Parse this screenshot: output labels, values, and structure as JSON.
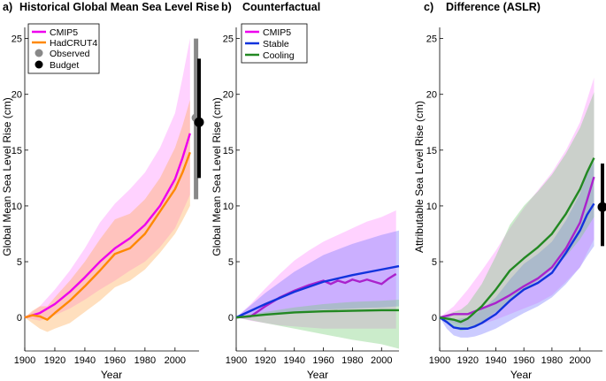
{
  "chart_data": [
    {
      "type": "line",
      "panel_letter": "a)",
      "title": "Historical Global Mean Sea Level Rise",
      "xlabel": "Year",
      "ylabel": "Global Mean Sea Level Rise (cm)",
      "xlim": [
        1900,
        2016
      ],
      "ylim": [
        -3,
        26
      ],
      "xticks": [
        1900,
        1920,
        1940,
        1960,
        1980,
        2000
      ],
      "yticks": [
        0,
        5,
        10,
        15,
        20,
        25
      ],
      "legend_position": "top-left",
      "series": [
        {
          "name": "CMIP5",
          "color": "#ee00ee",
          "band_color": "#ff88ff",
          "x": [
            1900,
            1910,
            1920,
            1930,
            1940,
            1950,
            1960,
            1970,
            1980,
            1990,
            2000,
            2005,
            2010
          ],
          "values": [
            0,
            0.4,
            1.2,
            2.3,
            3.6,
            5.0,
            6.2,
            7.1,
            8.3,
            10.0,
            12.4,
            14.3,
            16.5
          ],
          "lower": [
            0,
            -0.3,
            0.2,
            0.8,
            1.6,
            2.5,
            3.3,
            4.2,
            5.0,
            6.3,
            8.0,
            9.5,
            11.0
          ],
          "upper": [
            0,
            1.0,
            2.5,
            4.2,
            6.2,
            8.5,
            10.2,
            11.5,
            13.0,
            15.2,
            18.3,
            21.5,
            25.0
          ]
        },
        {
          "name": "HadCRUT4",
          "color": "#ff8800",
          "band_color": "#ffaa55",
          "x": [
            1900,
            1905,
            1910,
            1915,
            1920,
            1930,
            1940,
            1950,
            1960,
            1970,
            1980,
            1990,
            2000,
            2005,
            2010
          ],
          "values": [
            0,
            0.2,
            0.1,
            -0.2,
            0.4,
            1.5,
            2.8,
            4.2,
            5.7,
            6.2,
            7.5,
            9.5,
            11.5,
            13.0,
            14.8
          ],
          "lower": [
            0,
            -0.5,
            -1.0,
            -1.3,
            -1.0,
            -0.5,
            0.5,
            1.5,
            2.7,
            3.3,
            4.3,
            5.8,
            7.5,
            8.7,
            10.0
          ],
          "upper": [
            0,
            0.6,
            1.0,
            1.0,
            1.8,
            3.3,
            5.0,
            7.0,
            8.8,
            9.3,
            10.6,
            12.5,
            15.2,
            17.2,
            19.5
          ]
        }
      ],
      "observed": {
        "name": "Observed",
        "color": "#888888",
        "year": 2014,
        "value": 17.9,
        "low": 10.6,
        "high": 25.0
      },
      "budget": {
        "name": "Budget",
        "color": "#000000",
        "year": 2016,
        "value": 17.5,
        "low": 12.5,
        "high": 23.2
      }
    },
    {
      "type": "line",
      "panel_letter": "b)",
      "title": "Counterfactual",
      "xlabel": "Year",
      "ylabel": "Global Mean Sea Level Rise (cm)",
      "xlim": [
        1900,
        2012
      ],
      "ylim": [
        -3,
        26
      ],
      "xticks": [
        1900,
        1920,
        1940,
        1960,
        1980,
        2000
      ],
      "yticks": [
        0,
        5,
        10,
        15,
        20,
        25
      ],
      "legend_position": "top-left",
      "series": [
        {
          "name": "CMIP5",
          "color": "#aa22cc",
          "band_color": "#ff88ff",
          "x": [
            1900,
            1910,
            1920,
            1930,
            1940,
            1950,
            1960,
            1965,
            1970,
            1975,
            1980,
            1985,
            1990,
            1995,
            2000,
            2005,
            2010
          ],
          "values": [
            0,
            0.1,
            1.0,
            1.8,
            2.4,
            2.9,
            3.3,
            3.0,
            3.3,
            3.1,
            3.4,
            3.2,
            3.4,
            3.2,
            3.0,
            3.5,
            3.9
          ],
          "lower": [
            0,
            -0.3,
            -0.5,
            -0.7,
            -0.8,
            -0.9,
            -1.0,
            -1.0,
            -1.0,
            -1.0,
            -1.0,
            -1.0,
            -1.0,
            -1.0,
            -1.0,
            -1.0,
            -1.0
          ],
          "upper": [
            0,
            1.2,
            2.6,
            3.9,
            5.1,
            6.0,
            6.8,
            7.1,
            7.4,
            7.7,
            8.0,
            8.3,
            8.6,
            8.8,
            9.0,
            9.3,
            9.6
          ]
        },
        {
          "name": "Stable",
          "color": "#1133dd",
          "band_color": "#7777ff",
          "x": [
            1900,
            1920,
            1940,
            1960,
            1980,
            2000,
            2012
          ],
          "values": [
            0,
            1.2,
            2.3,
            3.2,
            3.8,
            4.3,
            4.6
          ],
          "lower": [
            0,
            0.2,
            0.5,
            0.7,
            0.8,
            0.9,
            1.0
          ],
          "upper": [
            0,
            2.2,
            4.1,
            5.6,
            6.6,
            7.4,
            7.8
          ]
        },
        {
          "name": "Cooling",
          "color": "#228822",
          "band_color": "#77cc77",
          "x": [
            1900,
            1920,
            1940,
            1960,
            1980,
            2000,
            2012
          ],
          "values": [
            0,
            0.25,
            0.45,
            0.55,
            0.6,
            0.65,
            0.65
          ],
          "lower": [
            0,
            -0.5,
            -1.0,
            -1.5,
            -2.0,
            -2.4,
            -2.8
          ],
          "upper": [
            0,
            0.5,
            0.9,
            1.2,
            1.4,
            1.5,
            1.6
          ]
        }
      ]
    },
    {
      "type": "line",
      "panel_letter": "c)",
      "title": "Difference (ASLR)",
      "xlabel": "Year",
      "ylabel": "Attributable Sea Level Rise (cm)",
      "xlim": [
        1900,
        2016
      ],
      "ylim": [
        -3,
        26
      ],
      "xticks": [
        1900,
        1920,
        1940,
        1960,
        1980,
        2000
      ],
      "yticks": [
        0,
        5,
        10,
        15,
        20,
        25
      ],
      "series": [
        {
          "name": "CMIP5",
          "color": "#aa22cc",
          "band_color": "#ff88ff",
          "x": [
            1900,
            1910,
            1920,
            1930,
            1940,
            1950,
            1960,
            1970,
            1980,
            1990,
            2000,
            2005,
            2010
          ],
          "values": [
            0,
            0.3,
            0.3,
            0.8,
            1.3,
            2.0,
            2.8,
            3.5,
            4.5,
            6.2,
            8.5,
            10.5,
            12.6
          ],
          "lower": [
            0,
            -0.5,
            -0.8,
            -0.6,
            -0.2,
            0.3,
            0.8,
            1.3,
            2.0,
            3.2,
            4.5,
            5.8,
            7.0
          ],
          "upper": [
            0,
            1.0,
            2.5,
            4.2,
            6.0,
            8.0,
            9.8,
            11.4,
            13.0,
            15.0,
            17.5,
            19.5,
            21.5
          ]
        },
        {
          "name": "Stable",
          "color": "#1133dd",
          "band_color": "#7777ff",
          "x": [
            1900,
            1905,
            1910,
            1915,
            1920,
            1925,
            1930,
            1940,
            1950,
            1960,
            1970,
            1980,
            1990,
            2000,
            2005,
            2010
          ],
          "values": [
            0,
            -0.4,
            -0.9,
            -1.0,
            -1.0,
            -0.8,
            -0.5,
            0.3,
            1.5,
            2.5,
            3.1,
            4.0,
            5.8,
            7.8,
            9.2,
            10.2
          ],
          "lower": [
            0,
            -1.0,
            -1.6,
            -1.8,
            -1.8,
            -1.7,
            -1.5,
            -1.0,
            -0.3,
            0.4,
            1.0,
            1.8,
            3.0,
            4.5,
            5.5,
            6.4
          ],
          "upper": [
            0,
            0.2,
            -0.2,
            -0.1,
            0.0,
            0.3,
            0.7,
            1.8,
            3.4,
            4.8,
            5.7,
            6.8,
            8.7,
            11.1,
            12.8,
            14.0
          ]
        },
        {
          "name": "Cooling",
          "color": "#228822",
          "band_color": "#77cc77",
          "x": [
            1900,
            1910,
            1915,
            1920,
            1930,
            1940,
            1950,
            1960,
            1970,
            1980,
            1990,
            2000,
            2005,
            2010
          ],
          "values": [
            0,
            -0.2,
            -0.4,
            -0.1,
            1.0,
            2.5,
            4.2,
            5.3,
            6.3,
            7.5,
            9.3,
            11.5,
            13.0,
            14.3
          ],
          "lower": [
            0,
            -0.9,
            -1.2,
            -1.1,
            -0.4,
            0.5,
            1.5,
            2.5,
            3.3,
            4.3,
            5.5,
            7.0,
            8.0,
            9.0
          ],
          "upper": [
            0,
            0.5,
            0.7,
            1.2,
            3.0,
            5.5,
            8.3,
            10.0,
            11.3,
            12.8,
            14.7,
            17.0,
            18.6,
            20.2
          ]
        }
      ],
      "budget": {
        "name": "Budget",
        "color": "#000000",
        "year": 2016,
        "value": 9.9,
        "low": 6.4,
        "high": 13.8
      }
    }
  ]
}
